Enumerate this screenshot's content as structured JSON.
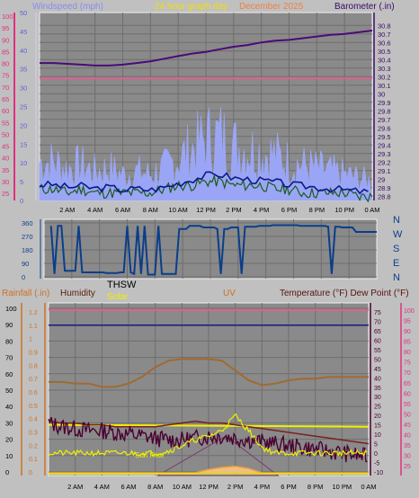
{
  "header": {
    "windspeed_label": "Windspeed (mph)",
    "graph_title": "24 hour graph day",
    "date_text": "December 2025",
    "barometer_label": "Barometer (.in)"
  },
  "wind_dir_panel": {
    "compass_labels": [
      "N",
      "W",
      "S",
      "E",
      "N"
    ],
    "thsw_label": "THSW"
  },
  "bottom_header": {
    "rainfall_label": "Rainfall (.in)",
    "humidity_label": "Humidity",
    "solar_label": "Solar",
    "uv_label": "UV",
    "temperature_label": "Temperature (°F) Dew Point (°F)"
  },
  "annotations": {
    "sun_rise": "Sun Rise"
  },
  "colors": {
    "plot_bg": "#8a8a8a",
    "grid": "#6e6e6e",
    "barometer": "#4b0a78",
    "wind_avg": "#0a1a8a",
    "wind_gust": "#9aa6f5",
    "wind_green": "#1c5a1c",
    "outside_humidity_pink": "#e06090",
    "wind_direction": "#0a3e8a",
    "temperature": "#4a0030",
    "dew_point": "#7a2020",
    "humidity_brown": "#a06a30",
    "solar": "#f0f000",
    "uv": "#f0a040",
    "frame": "#f0f0f0"
  },
  "chart_data": [
    {
      "type": "line",
      "title": "24 hour graph day",
      "x_tick_labels": [
        "2 AM",
        "4 AM",
        "6 AM",
        "8 AM",
        "10 AM",
        "12 PM",
        "2 PM",
        "4 PM",
        "6 PM",
        "8 PM",
        "10 PM",
        "0 AM"
      ],
      "left_axis_1": {
        "label": "",
        "ticks": [
          25,
          30,
          35,
          40,
          45,
          50,
          55,
          60,
          65,
          70,
          75,
          80,
          85,
          90,
          95,
          100
        ]
      },
      "left_axis_2": {
        "label": "Windspeed (mph)",
        "ticks": [
          0,
          5,
          10,
          15,
          20,
          25,
          30,
          35,
          40,
          45,
          50
        ]
      },
      "right_axis": {
        "label": "Barometer (.in)",
        "ticks": [
          28.8,
          28.9,
          29,
          29.1,
          29.2,
          29.3,
          29.4,
          29.5,
          29.6,
          29.7,
          29.8,
          29.9,
          30,
          30.1,
          30.2,
          30.3,
          30.4,
          30.5,
          30.6,
          30.7,
          30.8
        ],
        "ylim": [
          28.75,
          30.95
        ]
      },
      "series": [
        {
          "name": "Barometer (.in)",
          "x": [
            0,
            1,
            2,
            3,
            4,
            5,
            6,
            7,
            8,
            9,
            10,
            11,
            12,
            13,
            14,
            15,
            16,
            17,
            18,
            19,
            20,
            21,
            22,
            23,
            24
          ],
          "y": [
            30.36,
            30.36,
            30.35,
            30.34,
            30.33,
            30.33,
            30.34,
            30.36,
            30.38,
            30.41,
            30.44,
            30.47,
            30.49,
            30.52,
            30.55,
            30.57,
            30.6,
            30.62,
            30.63,
            30.65,
            30.67,
            30.69,
            30.7,
            30.72,
            30.74
          ]
        },
        {
          "x": [
            0,
            24
          ],
          "y": [
            30.18,
            30.18
          ]
        },
        {
          "x": [
            0,
            1,
            2,
            3,
            4,
            5,
            6,
            7,
            8,
            9,
            10,
            11,
            12,
            13,
            14,
            15,
            16,
            17,
            18,
            19,
            20,
            21,
            22,
            23,
            24
          ],
          "y": [
            12,
            12,
            10,
            11,
            9,
            10,
            8,
            9,
            8,
            10,
            13,
            16,
            19,
            20,
            17,
            16,
            15,
            14,
            12,
            11,
            10,
            9,
            8,
            7,
            6
          ]
        },
        {
          "x": [
            0,
            1,
            2,
            3,
            4,
            5,
            6,
            7,
            8,
            9,
            10,
            11,
            12,
            13,
            14,
            15,
            16,
            17,
            18,
            19,
            20,
            21,
            22,
            23,
            24
          ],
          "y": [
            3,
            3,
            2,
            3,
            2,
            2,
            2,
            2,
            2,
            3,
            4,
            4,
            5,
            5,
            4,
            4,
            4,
            3,
            3,
            2,
            2,
            2,
            2,
            1,
            1
          ]
        }
      ]
    },
    {
      "type": "line",
      "title": "",
      "left_axis": {
        "ticks": [
          0,
          90,
          180,
          270,
          360
        ],
        "ylim": [
          0,
          360
        ]
      },
      "right_labels": [
        "N",
        "W",
        "S",
        "E",
        "N"
      ],
      "series": [
        {
          "x": [
            0,
            1,
            2,
            3,
            4,
            5,
            6,
            7,
            8,
            9,
            10,
            11,
            12,
            13,
            14,
            15,
            16,
            17,
            18,
            19,
            20,
            21,
            22,
            23,
            24
          ],
          "y": [
            330,
            340,
            40,
            30,
            30,
            25,
            30,
            20,
            15,
            20,
            320,
            340,
            330,
            320,
            330,
            335,
            340,
            345,
            345,
            340,
            340,
            335,
            330,
            300,
            300
          ]
        }
      ]
    },
    {
      "type": "line",
      "title": "",
      "x_tick_labels": [
        "2 AM",
        "4 AM",
        "6 AM",
        "8 AM",
        "10 AM",
        "12 PM",
        "2 PM",
        "4 PM",
        "6 PM",
        "8 PM",
        "10 PM",
        "0 AM"
      ],
      "left_axis_1": {
        "label": "Rainfall (.in)",
        "ticks": [
          0,
          10,
          20,
          30,
          40,
          50,
          60,
          70,
          80,
          90,
          100
        ]
      },
      "left_axis_2": {
        "label": "",
        "ticks": [
          0,
          0.1,
          0.2,
          0.3,
          0.4,
          0.5,
          0.6,
          0.7,
          0.8,
          0.9,
          1,
          1.1,
          1.2
        ]
      },
      "right_axis_1": {
        "label": "Temperature (°F) Dew Point (°F)",
        "ticks": [
          -10,
          -5,
          0,
          5,
          10,
          15,
          20,
          25,
          30,
          35,
          40,
          45,
          50,
          55,
          60,
          65,
          70,
          75
        ]
      },
      "right_axis_2": {
        "label": "",
        "ticks": [
          25,
          30,
          35,
          40,
          45,
          50,
          55,
          60,
          65,
          70,
          75,
          80,
          85,
          90,
          95,
          100
        ]
      },
      "series": [
        {
          "name": "Humidity",
          "x": [
            0,
            1,
            2,
            3,
            4,
            5,
            6,
            7,
            8,
            9,
            10,
            11,
            12,
            13,
            14,
            15,
            16,
            17,
            18,
            19,
            20,
            21,
            22,
            23,
            24
          ],
          "y": [
            55,
            55,
            54,
            54,
            52,
            52,
            54,
            58,
            64,
            68,
            69,
            69,
            69,
            68,
            62,
            56,
            53,
            54,
            56,
            57,
            57,
            58,
            58,
            58,
            58
          ]
        },
        {
          "x": [
            0,
            24
          ],
          "y": [
            76,
            76
          ]
        },
        {
          "x": [
            0,
            24
          ],
          "y": [
            68,
            68
          ]
        },
        {
          "x": [
            0,
            1,
            2,
            3,
            4,
            5,
            6,
            7,
            8,
            9,
            10,
            11,
            12,
            13,
            14,
            15,
            16,
            17,
            18,
            19,
            20,
            21,
            22,
            23,
            24
          ],
          "y": [
            16,
            14,
            13,
            12,
            12,
            11,
            10,
            9,
            8,
            7,
            7,
            8,
            9,
            9,
            8,
            7,
            6,
            5,
            4,
            3,
            2,
            1,
            0,
            -1,
            -2
          ]
        },
        {
          "x": [
            0,
            1,
            2,
            3,
            4,
            5,
            6,
            7,
            8,
            9,
            10,
            11,
            12,
            13,
            14,
            15,
            16,
            17,
            18,
            19,
            20,
            21,
            22,
            23,
            24
          ],
          "y": [
            17,
            16,
            16,
            15,
            15,
            14,
            14,
            14,
            14,
            15,
            16,
            17,
            16,
            16,
            15,
            14,
            13,
            12,
            11,
            10,
            9,
            8,
            7,
            6,
            5
          ]
        },
        {
          "name": "Solar",
          "x": [
            0,
            1,
            2,
            3,
            4,
            5,
            6,
            7,
            8,
            9,
            10,
            11,
            12,
            13,
            14,
            15,
            16,
            17,
            18,
            19,
            20,
            21,
            22,
            23,
            24
          ],
          "y": [
            0,
            0,
            0,
            0,
            0,
            0,
            0,
            0,
            0,
            1,
            4,
            7,
            9,
            12,
            20,
            12,
            3,
            0,
            0,
            0,
            0,
            0,
            0,
            0,
            0
          ]
        },
        {
          "x": [
            0,
            24
          ],
          "y": [
            15,
            14
          ]
        },
        {
          "name": "UV",
          "x": [
            0,
            1,
            2,
            3,
            4,
            5,
            6,
            7,
            8,
            9,
            10,
            11,
            12,
            13,
            14,
            15,
            16,
            17,
            18,
            19,
            20,
            21,
            22,
            23,
            24
          ],
          "y": [
            0,
            0,
            0,
            0,
            0,
            0,
            0,
            0,
            0,
            0,
            0,
            0,
            0.03,
            0.05,
            0.06,
            0.04,
            0,
            0,
            0,
            0,
            0,
            0,
            0,
            0,
            0
          ]
        }
      ]
    }
  ]
}
